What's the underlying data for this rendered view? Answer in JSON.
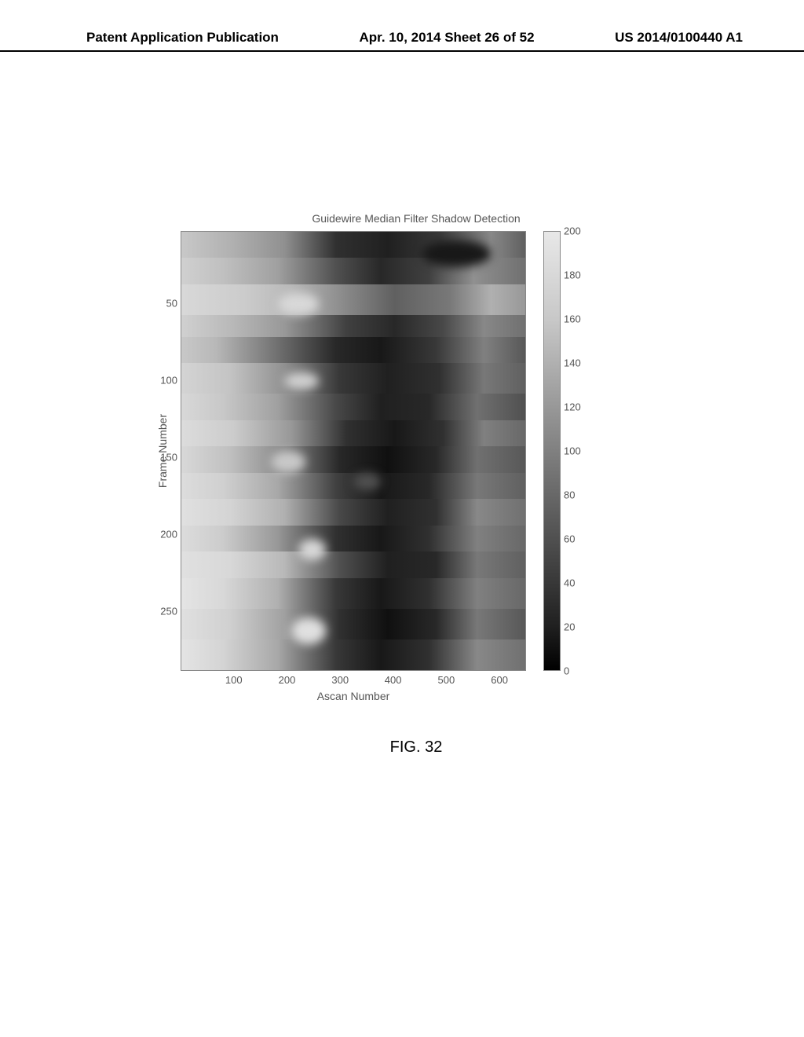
{
  "header": {
    "left": "Patent Application Publication",
    "center": "Apr. 10, 2014  Sheet 26 of 52",
    "right": "US 2014/0100440 A1"
  },
  "figure": {
    "title": "Guidewire Median Filter Shadow Detection",
    "y_label": "Frame Number",
    "x_label": "Ascan Number",
    "caption": "FIG. 32",
    "y_ticks": [
      {
        "label": "50",
        "pos_pct": 16.5
      },
      {
        "label": "100",
        "pos_pct": 34
      },
      {
        "label": "150",
        "pos_pct": 51.5
      },
      {
        "label": "200",
        "pos_pct": 69
      },
      {
        "label": "250",
        "pos_pct": 86.5
      }
    ],
    "x_ticks": [
      {
        "label": "100",
        "pos_pct": 15.4
      },
      {
        "label": "200",
        "pos_pct": 30.8
      },
      {
        "label": "300",
        "pos_pct": 46.2
      },
      {
        "label": "400",
        "pos_pct": 61.5
      },
      {
        "label": "500",
        "pos_pct": 76.9
      },
      {
        "label": "600",
        "pos_pct": 92.3
      }
    ],
    "colorbar_ticks": [
      {
        "label": "200",
        "pos_pct": 0
      },
      {
        "label": "180",
        "pos_pct": 10
      },
      {
        "label": "160",
        "pos_pct": 20
      },
      {
        "label": "140",
        "pos_pct": 30
      },
      {
        "label": "120",
        "pos_pct": 40
      },
      {
        "label": "100",
        "pos_pct": 50
      },
      {
        "label": "80",
        "pos_pct": 60
      },
      {
        "label": "60",
        "pos_pct": 70
      },
      {
        "label": "40",
        "pos_pct": 80
      },
      {
        "label": "20",
        "pos_pct": 90
      },
      {
        "label": "0",
        "pos_pct": 100
      }
    ],
    "heatmap_bands": [
      {
        "top_pct": 0,
        "h_pct": 6,
        "bg": "linear-gradient(to right,#c8c8c8 0%,#b0b0b0 15%,#909090 30%,#303030 45%,#202020 60%,#383838 75%,#888 90%,#606060 100%)"
      },
      {
        "top_pct": 6,
        "h_pct": 6,
        "bg": "linear-gradient(to right,#d0d0d0 0%,#c0c0c0 12%,#a0a0a0 28%,#505050 45%,#282828 58%,#404040 72%,#909090 85%,#707070 100%)"
      },
      {
        "top_pct": 12,
        "h_pct": 7,
        "bg": "linear-gradient(to right,#d8d8d8 0%,#cccccc 18%,#b8b8b8 32%,#888888 48%,#606060 62%,#787878 78%,#b0b0b0 90%,#989898 100%)"
      },
      {
        "top_pct": 19,
        "h_pct": 5,
        "bg": "linear-gradient(to right,#d0d0d0 0%,#b8b8b8 15%,#989898 30%,#404040 48%,#282828 62%,#484848 76%,#888888 88%,#707070 100%)"
      },
      {
        "top_pct": 24,
        "h_pct": 6,
        "bg": "linear-gradient(to right,#c8c8c8 0%,#b8b8b8 10%,#707070 28%,#282828 45%,#181818 58%,#383838 74%,#808080 88%,#585858 100%)"
      },
      {
        "top_pct": 30,
        "h_pct": 7,
        "bg": "linear-gradient(to right,#d4d4d4 0%,#c4c4c4 14%,#909090 30%,#383838 46%,#202020 60%,#303030 75%,#787878 88%,#606060 100%)"
      },
      {
        "top_pct": 37,
        "h_pct": 6,
        "bg": "linear-gradient(to right,#d8d8d8 0%,#c8c8c8 12%,#a0a0a0 28%,#484848 45%,#202020 58%,#282828 72%,#707070 86%,#505050 100%)"
      },
      {
        "top_pct": 43,
        "h_pct": 6,
        "bg": "linear-gradient(to right,#dcdcdc 0%,#cccccc 15%,#989898 32%,#303030 48%,#181818 62%,#303030 76%,#808080 88%,#686868 100%)"
      },
      {
        "top_pct": 49,
        "h_pct": 6,
        "bg": "linear-gradient(to right,#d8d8d8 0%,#c0c0c0 14%,#888888 30%,#282828 46%,#101010 60%,#282828 74%,#707070 86%,#585858 100%)"
      },
      {
        "top_pct": 55,
        "h_pct": 6,
        "bg": "linear-gradient(to right,#dcdcdc 0%,#d0d0d0 12%,#a8a8a8 28%,#404040 45%,#181818 58%,#282828 72%,#787878 86%,#606060 100%)"
      },
      {
        "top_pct": 61,
        "h_pct": 6,
        "bg": "linear-gradient(to right,#e0e0e0 0%,#d4d4d4 14%,#b0b0b0 30%,#484848 46%,#202020 60%,#303030 74%,#888888 86%,#707070 100%)"
      },
      {
        "top_pct": 67,
        "h_pct": 6,
        "bg": "linear-gradient(to right,#dcdcdc 0%,#cccccc 12%,#989898 28%,#303030 45%,#181818 58%,#303030 72%,#808080 86%,#686868 100%)"
      },
      {
        "top_pct": 73,
        "h_pct": 6,
        "bg": "linear-gradient(to right,#e0e0e0 0%,#d8d8d8 14%,#b8b8b8 30%,#505050 46%,#202020 60%,#282828 74%,#787878 86%,#606060 100%)"
      },
      {
        "top_pct": 79,
        "h_pct": 7,
        "bg": "linear-gradient(to right,#e4e4e4 0%,#d8d8d8 12%,#b0b0b0 28%,#383838 45%,#181818 58%,#303030 72%,#808080 86%,#686868 100%)"
      },
      {
        "top_pct": 86,
        "h_pct": 7,
        "bg": "linear-gradient(to right,#e0e0e0 0%,#d0d0d0 14%,#a0a0a0 30%,#303030 46%,#101010 60%,#282828 74%,#787878 86%,#585858 100%)"
      },
      {
        "top_pct": 93,
        "h_pct": 7,
        "bg": "linear-gradient(to right,#e4e4e4 0%,#d4d4d4 12%,#a8a8a8 28%,#383838 45%,#181818 58%,#303030 72%,#888888 86%,#707070 100%)"
      }
    ],
    "heatmap_blobs": [
      {
        "top_pct": 2,
        "left_pct": 70,
        "w_pct": 20,
        "h_pct": 6,
        "bg": "#181818"
      },
      {
        "top_pct": 14,
        "left_pct": 28,
        "w_pct": 12,
        "h_pct": 5,
        "bg": "#d8d8d8"
      },
      {
        "top_pct": 32,
        "left_pct": 30,
        "w_pct": 10,
        "h_pct": 4,
        "bg": "#d0d0d0"
      },
      {
        "top_pct": 50,
        "left_pct": 26,
        "w_pct": 10,
        "h_pct": 5,
        "bg": "#c8c8c8"
      },
      {
        "top_pct": 55,
        "left_pct": 50,
        "w_pct": 8,
        "h_pct": 4,
        "bg": "#505050"
      },
      {
        "top_pct": 70,
        "left_pct": 34,
        "w_pct": 8,
        "h_pct": 5,
        "bg": "#d8d8d8"
      },
      {
        "top_pct": 88,
        "left_pct": 32,
        "w_pct": 10,
        "h_pct": 6,
        "bg": "#e0e0e0"
      }
    ]
  }
}
